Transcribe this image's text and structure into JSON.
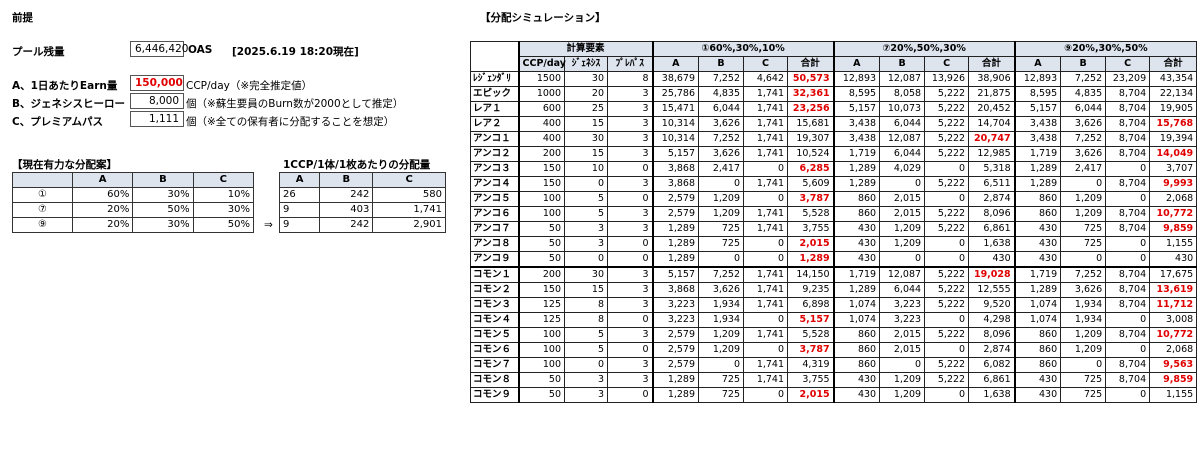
{
  "left": {
    "section_title": "前提",
    "pool_label": "プール残量",
    "pool_value": "6,446,420",
    "pool_unit": "OAS",
    "pool_date": "[2025.6.19 18:20現在]",
    "params": [
      {
        "label": "A、1日あたりEarn量",
        "value": "150,000",
        "note": "CCP/day（※完全推定値）"
      },
      {
        "label": "B、ジェネシスヒーロー",
        "value": "8,000",
        "note": "個（※蘇生要員のBurn数が2000として推定）"
      },
      {
        "label": "C、プレミアムパス",
        "value": "1,111",
        "note": "個（※全ての保有者に分配することを想定）"
      }
    ],
    "alloc_title": "【現在有力な分配案】",
    "alloc_headers": [
      "",
      "A",
      "B",
      "C"
    ],
    "alloc_rows": [
      [
        "①",
        "60%",
        "30%",
        "10%"
      ],
      [
        "⑦",
        "20%",
        "50%",
        "30%"
      ],
      [
        "⑨",
        "20%",
        "30%",
        "50%"
      ]
    ],
    "arrow": "⇒",
    "per_title": "1CCP/1体/1枚あたりの分配量",
    "per_headers": [
      "A",
      "B",
      "C"
    ],
    "per_rows": [
      [
        "26",
        "242",
        "580"
      ],
      [
        "9",
        "403",
        "1,741"
      ],
      [
        "9",
        "242",
        "2,901"
      ]
    ]
  },
  "sim": {
    "title": "【分配シミュレーション】",
    "group_headers": [
      "計算要素",
      "①60%,30%,10%",
      "⑦20%,50%,30%",
      "⑨20%,30%,50%"
    ],
    "sub_headers": [
      "CCP/day",
      "ｼﾞｪﾈｼｽ",
      "ﾌﾟﾚﾊﾟｽ",
      "A",
      "B",
      "C",
      "合計",
      "A",
      "B",
      "C",
      "合計",
      "A",
      "B",
      "C",
      "合計"
    ],
    "rows": [
      {
        "name": "ﾚｼﾞｪﾝﾀﾞﾘ",
        "v": [
          "1500",
          "30",
          "8",
          "38,679",
          "7,252",
          "4,642",
          "50,573",
          "12,893",
          "12,087",
          "13,926",
          "38,906",
          "12,893",
          "7,252",
          "23,209",
          "43,354"
        ],
        "red": [
          6
        ]
      },
      {
        "name": "エピック",
        "v": [
          "1000",
          "20",
          "3",
          "25,786",
          "4,835",
          "1,741",
          "32,361",
          "8,595",
          "8,058",
          "5,222",
          "21,875",
          "8,595",
          "4,835",
          "8,704",
          "22,134"
        ],
        "red": [
          6
        ]
      },
      {
        "name": "レア１",
        "v": [
          "600",
          "25",
          "3",
          "15,471",
          "6,044",
          "1,741",
          "23,256",
          "5,157",
          "10,073",
          "5,222",
          "20,452",
          "5,157",
          "6,044",
          "8,704",
          "19,905"
        ],
        "red": [
          6
        ]
      },
      {
        "name": "レア２",
        "v": [
          "400",
          "15",
          "3",
          "10,314",
          "3,626",
          "1,741",
          "15,681",
          "3,438",
          "6,044",
          "5,222",
          "14,704",
          "3,438",
          "3,626",
          "8,704",
          "15,768"
        ],
        "red": [
          14
        ]
      },
      {
        "name": "アンコ１",
        "v": [
          "400",
          "30",
          "3",
          "10,314",
          "7,252",
          "1,741",
          "19,307",
          "3,438",
          "12,087",
          "5,222",
          "20,747",
          "3,438",
          "7,252",
          "8,704",
          "19,394"
        ],
        "red": [
          10
        ]
      },
      {
        "name": "アンコ２",
        "v": [
          "200",
          "15",
          "3",
          "5,157",
          "3,626",
          "1,741",
          "10,524",
          "1,719",
          "6,044",
          "5,222",
          "12,985",
          "1,719",
          "3,626",
          "8,704",
          "14,049"
        ],
        "red": [
          14
        ]
      },
      {
        "name": "アンコ３",
        "v": [
          "150",
          "10",
          "0",
          "3,868",
          "2,417",
          "0",
          "6,285",
          "1,289",
          "4,029",
          "0",
          "5,318",
          "1,289",
          "2,417",
          "0",
          "3,707"
        ],
        "red": [
          6
        ]
      },
      {
        "name": "アンコ４",
        "v": [
          "150",
          "0",
          "3",
          "3,868",
          "0",
          "1,741",
          "5,609",
          "1,289",
          "0",
          "5,222",
          "6,511",
          "1,289",
          "0",
          "8,704",
          "9,993"
        ],
        "red": [
          14
        ]
      },
      {
        "name": "アンコ５",
        "v": [
          "100",
          "5",
          "0",
          "2,579",
          "1,209",
          "0",
          "3,787",
          "860",
          "2,015",
          "0",
          "2,874",
          "860",
          "1,209",
          "0",
          "2,068"
        ],
        "red": [
          6
        ]
      },
      {
        "name": "アンコ６",
        "v": [
          "100",
          "5",
          "3",
          "2,579",
          "1,209",
          "1,741",
          "5,528",
          "860",
          "2,015",
          "5,222",
          "8,096",
          "860",
          "1,209",
          "8,704",
          "10,772"
        ],
        "red": [
          14
        ]
      },
      {
        "name": "アンコ７",
        "v": [
          "50",
          "3",
          "3",
          "1,289",
          "725",
          "1,741",
          "3,755",
          "430",
          "1,209",
          "5,222",
          "6,861",
          "430",
          "725",
          "8,704",
          "9,859"
        ],
        "red": [
          14
        ]
      },
      {
        "name": "アンコ８",
        "v": [
          "50",
          "3",
          "0",
          "1,289",
          "725",
          "0",
          "2,015",
          "430",
          "1,209",
          "0",
          "1,638",
          "430",
          "725",
          "0",
          "1,155"
        ],
        "red": [
          6
        ]
      },
      {
        "name": "アンコ９",
        "v": [
          "50",
          "0",
          "0",
          "1,289",
          "0",
          "0",
          "1,289",
          "430",
          "0",
          "0",
          "430",
          "430",
          "0",
          "0",
          "430"
        ],
        "red": [
          6
        ]
      },
      {
        "name": "コモン１",
        "v": [
          "200",
          "30",
          "3",
          "5,157",
          "7,252",
          "1,741",
          "14,150",
          "1,719",
          "12,087",
          "5,222",
          "19,028",
          "1,719",
          "7,252",
          "8,704",
          "17,675"
        ],
        "red": [
          10
        ]
      },
      {
        "name": "コモン２",
        "v": [
          "150",
          "15",
          "3",
          "3,868",
          "3,626",
          "1,741",
          "9,235",
          "1,289",
          "6,044",
          "5,222",
          "12,555",
          "1,289",
          "3,626",
          "8,704",
          "13,619"
        ],
        "red": [
          14
        ]
      },
      {
        "name": "コモン３",
        "v": [
          "125",
          "8",
          "3",
          "3,223",
          "1,934",
          "1,741",
          "6,898",
          "1,074",
          "3,223",
          "5,222",
          "9,520",
          "1,074",
          "1,934",
          "8,704",
          "11,712"
        ],
        "red": [
          14
        ]
      },
      {
        "name": "コモン４",
        "v": [
          "125",
          "8",
          "0",
          "3,223",
          "1,934",
          "0",
          "5,157",
          "1,074",
          "3,223",
          "0",
          "4,298",
          "1,074",
          "1,934",
          "0",
          "3,008"
        ],
        "red": [
          6
        ]
      },
      {
        "name": "コモン５",
        "v": [
          "100",
          "5",
          "3",
          "2,579",
          "1,209",
          "1,741",
          "5,528",
          "860",
          "2,015",
          "5,222",
          "8,096",
          "860",
          "1,209",
          "8,704",
          "10,772"
        ],
        "red": [
          14
        ]
      },
      {
        "name": "コモン６",
        "v": [
          "100",
          "5",
          "0",
          "2,579",
          "1,209",
          "0",
          "3,787",
          "860",
          "2,015",
          "0",
          "2,874",
          "860",
          "1,209",
          "0",
          "2,068"
        ],
        "red": [
          6
        ]
      },
      {
        "name": "コモン７",
        "v": [
          "100",
          "0",
          "3",
          "2,579",
          "0",
          "1,741",
          "4,319",
          "860",
          "0",
          "5,222",
          "6,082",
          "860",
          "0",
          "8,704",
          "9,563"
        ],
        "red": [
          14
        ]
      },
      {
        "name": "コモン８",
        "v": [
          "50",
          "3",
          "3",
          "1,289",
          "725",
          "1,741",
          "3,755",
          "430",
          "1,209",
          "5,222",
          "6,861",
          "430",
          "725",
          "8,704",
          "9,859"
        ],
        "red": [
          14
        ]
      },
      {
        "name": "コモン９",
        "v": [
          "50",
          "3",
          "0",
          "1,289",
          "725",
          "0",
          "2,015",
          "430",
          "1,209",
          "0",
          "1,638",
          "430",
          "725",
          "0",
          "1,155"
        ],
        "red": [
          6
        ]
      }
    ]
  }
}
